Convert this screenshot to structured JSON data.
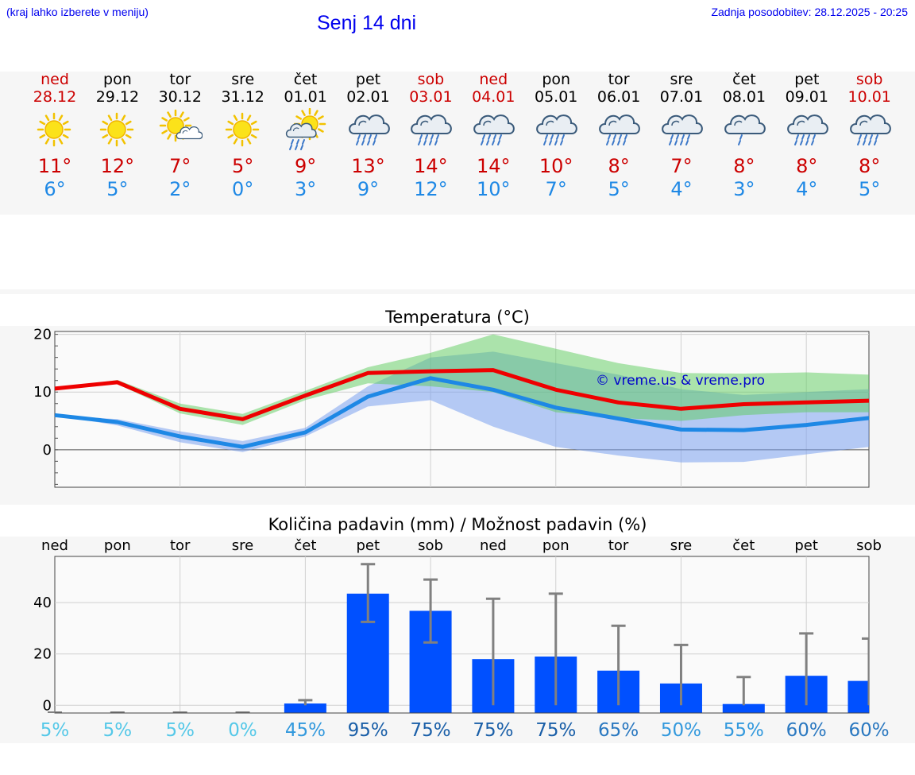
{
  "header": {
    "hint": "(kraj lahko izberete v meniju)",
    "title": "Senj 14 dni",
    "updated": "Zadnja posodobitev: 28.12.2025 - 20:25"
  },
  "days": [
    {
      "name": "ned",
      "date": "28.12",
      "weekend": true,
      "icon": "sun-icon",
      "tmax": "11°",
      "tmin": "6°"
    },
    {
      "name": "pon",
      "date": "29.12",
      "weekend": false,
      "icon": "sun-icon",
      "tmax": "12°",
      "tmin": "5°"
    },
    {
      "name": "tor",
      "date": "30.12",
      "weekend": false,
      "icon": "sun-cloud-icon",
      "tmax": "7°",
      "tmin": "2°"
    },
    {
      "name": "sre",
      "date": "31.12",
      "weekend": false,
      "icon": "sun-icon",
      "tmax": "5°",
      "tmin": "0°"
    },
    {
      "name": "čet",
      "date": "01.01",
      "weekend": false,
      "icon": "sun-rain-icon",
      "tmax": "9°",
      "tmin": "3°"
    },
    {
      "name": "pet",
      "date": "02.01",
      "weekend": false,
      "icon": "rain-cloud-icon",
      "tmax": "13°",
      "tmin": "9°"
    },
    {
      "name": "sob",
      "date": "03.01",
      "weekend": true,
      "icon": "rain-cloud-icon",
      "tmax": "14°",
      "tmin": "12°"
    },
    {
      "name": "ned",
      "date": "04.01",
      "weekend": true,
      "icon": "rain-cloud-icon",
      "tmax": "14°",
      "tmin": "10°"
    },
    {
      "name": "pon",
      "date": "05.01",
      "weekend": false,
      "icon": "rain-cloud-icon",
      "tmax": "10°",
      "tmin": "7°"
    },
    {
      "name": "tor",
      "date": "06.01",
      "weekend": false,
      "icon": "rain-cloud-icon",
      "tmax": "8°",
      "tmin": "5°"
    },
    {
      "name": "sre",
      "date": "07.01",
      "weekend": false,
      "icon": "rain-cloud-icon",
      "tmax": "7°",
      "tmin": "4°"
    },
    {
      "name": "čet",
      "date": "08.01",
      "weekend": false,
      "icon": "light-rain-cloud-icon",
      "tmax": "8°",
      "tmin": "3°"
    },
    {
      "name": "pet",
      "date": "09.01",
      "weekend": false,
      "icon": "rain-cloud-icon",
      "tmax": "8°",
      "tmin": "4°"
    },
    {
      "name": "sob",
      "date": "10.01",
      "weekend": true,
      "icon": "rain-cloud-icon",
      "tmax": "8°",
      "tmin": "5°"
    }
  ],
  "colors": {
    "max": "#ee0000",
    "min": "#1e88e5",
    "bar": "#0050ff",
    "weekend": "#cc0000"
  },
  "chart_data": [
    {
      "type": "line",
      "title": "Temperatura (°C)",
      "watermark": "© vreme.us & vreme.pro",
      "ylim": [
        -6.5,
        20.5
      ],
      "yticks": [
        0,
        10,
        20
      ],
      "x": [
        0,
        1,
        2,
        3,
        4,
        5,
        6,
        7,
        8,
        9,
        10,
        11,
        12,
        13
      ],
      "series": [
        {
          "name": "max",
          "values": [
            10.6,
            11.7,
            7.1,
            5.3,
            9.4,
            13.3,
            13.6,
            13.8,
            10.4,
            8.2,
            7.1,
            7.9,
            8.2,
            8.5
          ]
        },
        {
          "name": "min",
          "values": [
            6.0,
            4.8,
            2.3,
            0.5,
            3.0,
            9.2,
            12.4,
            10.4,
            7.3,
            5.4,
            3.5,
            3.4,
            4.3,
            5.5
          ]
        }
      ],
      "bands": [
        {
          "name": "max-range",
          "lower": [
            10.6,
            11.4,
            6.3,
            4.3,
            8.6,
            11.5,
            11.0,
            10.0,
            6.5,
            5.5,
            5.0,
            6.0,
            6.5,
            6.5
          ],
          "upper": [
            10.6,
            12.1,
            8.0,
            6.2,
            10.2,
            14.3,
            16.8,
            20.0,
            17.5,
            15.0,
            13.3,
            13.2,
            13.4,
            13.0
          ]
        },
        {
          "name": "min-range",
          "lower": [
            6.0,
            4.2,
            1.3,
            -0.4,
            2.3,
            7.5,
            8.6,
            4.0,
            0.5,
            -1.0,
            -2.2,
            -2.1,
            -0.8,
            0.5
          ],
          "upper": [
            6.0,
            5.3,
            3.2,
            1.5,
            3.8,
            11.0,
            16.0,
            17.0,
            15.0,
            13.0,
            10.5,
            9.5,
            10.0,
            10.5
          ]
        }
      ]
    },
    {
      "type": "bar",
      "title": "Količina padavin (mm) / Možnost padavin (%)",
      "ylim": [
        -3,
        58
      ],
      "yticks": [
        0,
        20,
        40
      ],
      "categories": [
        "ned",
        "pon",
        "tor",
        "sre",
        "čet",
        "pet",
        "sob",
        "ned",
        "pon",
        "tor",
        "sre",
        "čet",
        "pet",
        "sob"
      ],
      "values": [
        0,
        0,
        0,
        0,
        0.7,
        43.5,
        36.8,
        18.0,
        19.0,
        13.5,
        8.5,
        0.5,
        11.5,
        9.5
      ],
      "error_low": [
        0,
        0,
        0,
        0,
        0,
        32.5,
        24.5,
        0,
        0,
        0,
        0,
        0,
        0,
        0
      ],
      "error_high": [
        0,
        0,
        0,
        0,
        2,
        55,
        49,
        41.5,
        43.5,
        31,
        23.5,
        11,
        28,
        26
      ],
      "probability": [
        "5%",
        "5%",
        "5%",
        "0%",
        "45%",
        "95%",
        "75%",
        "75%",
        "75%",
        "65%",
        "50%",
        "55%",
        "60%",
        "60%"
      ],
      "probability_values": [
        5,
        5,
        5,
        0,
        45,
        95,
        75,
        75,
        75,
        65,
        50,
        55,
        60,
        60
      ]
    }
  ]
}
